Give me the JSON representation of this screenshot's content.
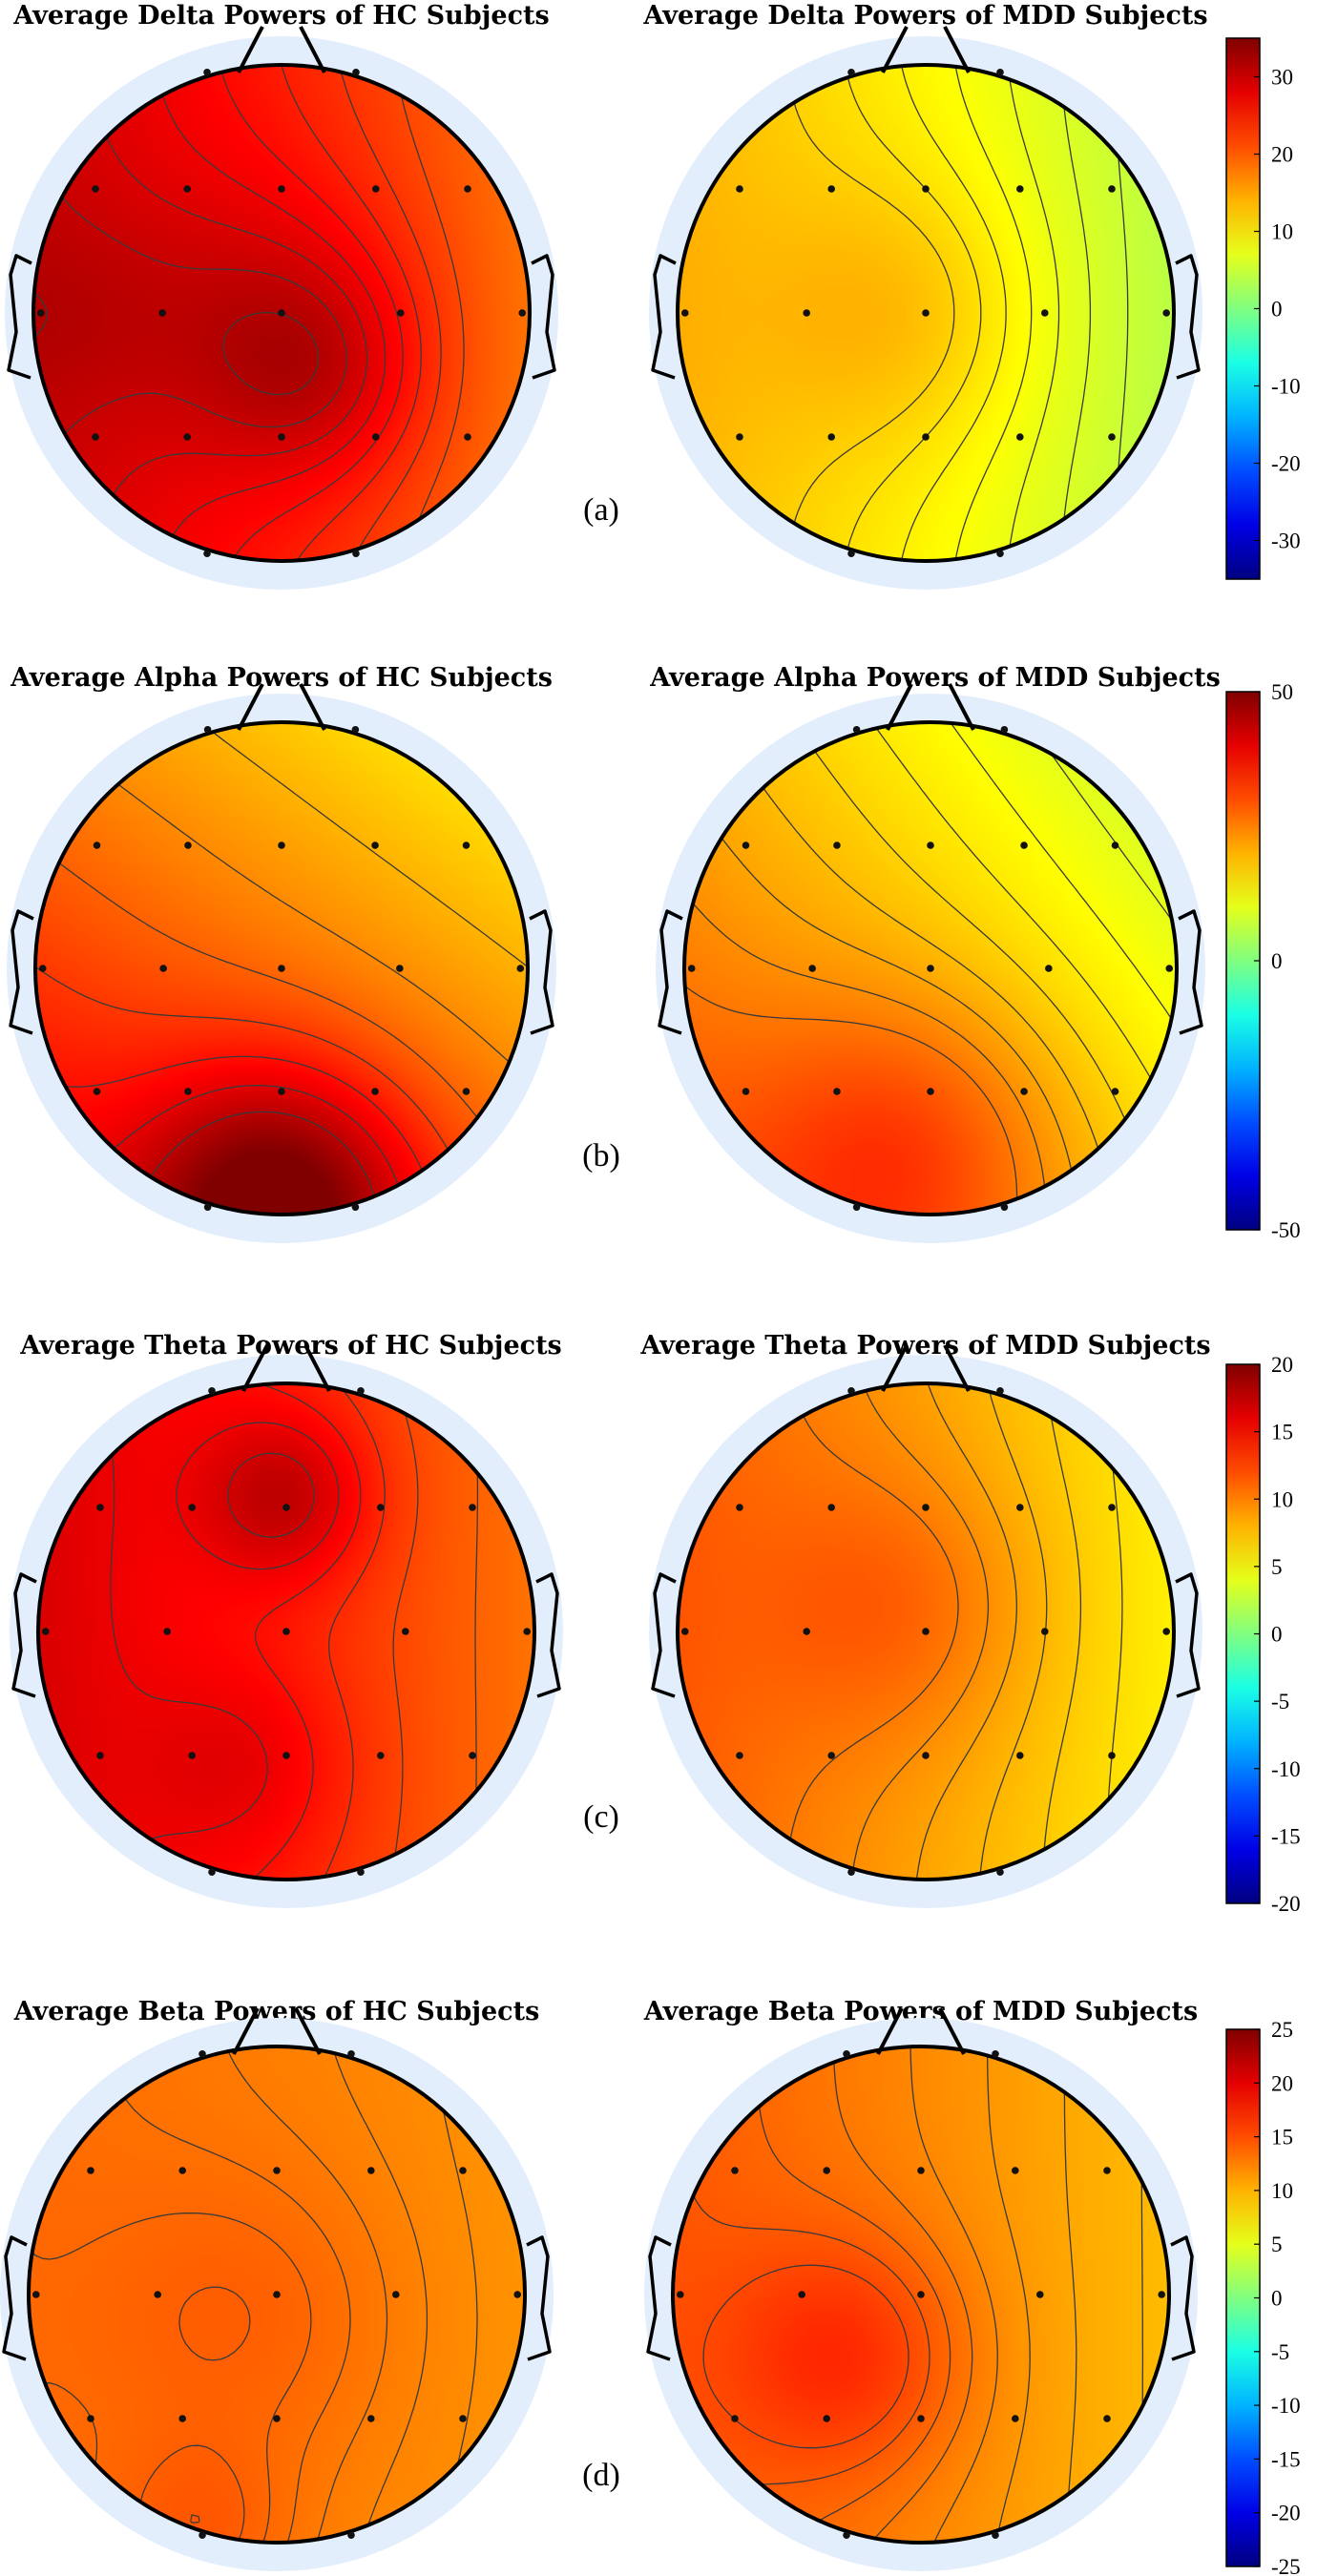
{
  "chart_data": [
    {
      "type": "heatmap",
      "label": "(a)",
      "band": "Delta",
      "colorbar": {
        "min": -35,
        "max": 35,
        "ticks": [
          30,
          20,
          10,
          0,
          -10,
          -20,
          -30
        ]
      },
      "panels": [
        {
          "title": "Average Delta Powers of HC Subjects",
          "group": "HC",
          "approx_range": [
            20,
            33
          ],
          "components": [
            {
              "c": 24,
              "amp": 4,
              "cx": 0.15,
              "cy": 0.25,
              "s": 0.3
            },
            {
              "c": 0,
              "amp": 5,
              "cx": 0.0,
              "cy": 0.05,
              "s": 0.45
            },
            {
              "c": 0,
              "amp": 1.5,
              "cx": -0.8,
              "cy": 0.0,
              "s": 0.3
            }
          ],
          "trend": [
            -6,
            0
          ]
        },
        {
          "title": "Average Delta Powers of MDD Subjects",
          "group": "MDD",
          "approx_range": [
            3,
            13
          ],
          "components": [
            {
              "c": 9,
              "amp": 4,
              "cx": -0.1,
              "cy": 0.0,
              "s": 0.4
            }
          ],
          "trend": [
            -5,
            0
          ]
        }
      ]
    },
    {
      "type": "heatmap",
      "label": "(b)",
      "band": "Alpha",
      "colorbar": {
        "min": -50,
        "max": 50,
        "ticks": [
          50,
          0,
          -50
        ]
      },
      "panels": [
        {
          "title": "Average Alpha Powers of HC Subjects",
          "group": "HC",
          "approx_range": [
            12,
            48
          ],
          "components": [
            {
              "c": 26,
              "amp": 20,
              "cx": 0.0,
              "cy": 0.95,
              "s": 0.4
            }
          ],
          "trend": [
            -6,
            8
          ]
        },
        {
          "title": "Average Alpha Powers of MDD Subjects",
          "group": "MDD",
          "approx_range": [
            8,
            28
          ],
          "components": [
            {
              "c": 18,
              "amp": 10,
              "cx": -0.1,
              "cy": 0.75,
              "s": 0.45
            }
          ],
          "trend": [
            -7,
            5
          ]
        }
      ]
    },
    {
      "type": "heatmap",
      "label": "(c)",
      "band": "Theta",
      "colorbar": {
        "min": -20,
        "max": 20,
        "ticks": [
          20,
          15,
          10,
          5,
          0,
          -5,
          -10,
          -15,
          -20
        ]
      },
      "panels": [
        {
          "title": "Average Theta Powers of HC Subjects",
          "group": "HC",
          "approx_range": [
            9,
            19
          ],
          "components": [
            {
              "c": 13.5,
              "amp": 4,
              "cx": 0.0,
              "cy": -0.55,
              "s": 0.25
            },
            {
              "c": 0,
              "amp": 2,
              "cx": -0.15,
              "cy": 0.55,
              "s": 0.3
            }
          ],
          "trend": [
            -3,
            0
          ]
        },
        {
          "title": "Average Theta Powers of MDD Subjects",
          "group": "MDD",
          "approx_range": [
            4,
            11
          ],
          "components": [
            {
              "c": 8.5,
              "amp": 2.5,
              "cx": -0.1,
              "cy": -0.1,
              "s": 0.4
            }
          ],
          "trend": [
            -3,
            0
          ]
        }
      ]
    },
    {
      "type": "heatmap",
      "label": "(d)",
      "band": "Beta",
      "colorbar": {
        "min": -25,
        "max": 25,
        "ticks": [
          25,
          20,
          15,
          10,
          5,
          0,
          -5,
          -10,
          -15,
          -20,
          -25
        ]
      },
      "panels": [
        {
          "title": "Average Beta Powers of HC Subjects",
          "group": "HC",
          "approx_range": [
            11,
            15
          ],
          "components": [
            {
              "c": 12.5,
              "amp": 1.5,
              "cx": -0.1,
              "cy": 0.1,
              "s": 0.45
            },
            {
              "c": 0,
              "amp": 1.5,
              "cx": -0.3,
              "cy": 0.95,
              "s": 0.25
            }
          ],
          "trend": [
            -1,
            0
          ]
        },
        {
          "title": "Average Beta Powers of MDD Subjects",
          "group": "MDD",
          "approx_range": [
            9,
            16
          ],
          "components": [
            {
              "c": 12,
              "amp": 4,
              "cx": -0.3,
              "cy": 0.25,
              "s": 0.35
            }
          ],
          "trend": [
            -2.5,
            0
          ]
        }
      ]
    }
  ],
  "electrode_grid": [
    [
      -0.3,
      -0.97
    ],
    [
      0.3,
      -0.97
    ],
    [
      -0.75,
      -0.5
    ],
    [
      -0.38,
      -0.5
    ],
    [
      0.0,
      -0.5
    ],
    [
      0.38,
      -0.5
    ],
    [
      0.75,
      -0.5
    ],
    [
      -0.97,
      0.0
    ],
    [
      -0.48,
      0.0
    ],
    [
      0.0,
      0.0
    ],
    [
      0.48,
      0.0
    ],
    [
      0.97,
      0.0
    ],
    [
      -0.75,
      0.5
    ],
    [
      -0.38,
      0.5
    ],
    [
      0.0,
      0.5
    ],
    [
      0.38,
      0.5
    ],
    [
      0.75,
      0.5
    ],
    [
      -0.3,
      0.97
    ],
    [
      0.3,
      0.97
    ]
  ],
  "colormap": "jet"
}
